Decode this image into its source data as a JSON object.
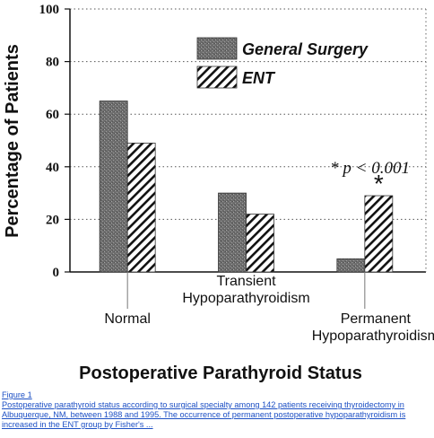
{
  "chart_data": {
    "type": "bar",
    "categories": [
      "Normal",
      "Transient Hypoparathyroidism",
      "Permanent Hypoparathyroidism"
    ],
    "category_lines": [
      [
        "Normal"
      ],
      [
        "Transient",
        "Hypoparathyroidism"
      ],
      [
        "Permanent",
        "Hypoparathyroidism"
      ]
    ],
    "series": [
      {
        "name": "General Surgery",
        "values": [
          65,
          30,
          5
        ],
        "pattern": "gray-stipple"
      },
      {
        "name": "ENT",
        "values": [
          49,
          22,
          29
        ],
        "pattern": "diagonal-hatch"
      }
    ],
    "ylabel": "Percentage of Patients",
    "xlabel": "Postoperative Parathyroid Status",
    "ylim": [
      0,
      100
    ],
    "yticks": [
      0,
      20,
      40,
      60,
      80,
      100
    ],
    "grid": "dotted horizontal",
    "legend_position": "top-right",
    "annotation": "* p < 0.001",
    "significance_marker": {
      "category": "Permanent Hypoparathyroidism",
      "series": "ENT",
      "symbol": "*"
    }
  },
  "caption": {
    "label": "Figure 1",
    "text": "Postoperative parathyroid status according to surgical specialty among 142 patients receiving thyroidectomy in Albuquerque, NM, between 1988 and 1995. The occurrence of permanent postoperative hypoparathyroidism is increased in the ENT group by Fisher's ..."
  },
  "colors": {
    "caption_link": "#1c4fc4",
    "bar_gray": "#7a7a7a",
    "ink": "#111111"
  }
}
